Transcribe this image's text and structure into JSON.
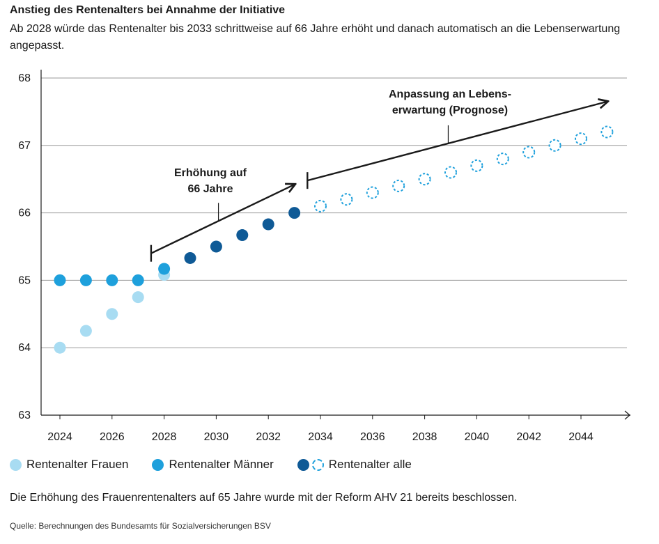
{
  "header": {
    "title": "Anstieg des Rentenalters bei Annahme der Initiative",
    "subtitle": "Ab 2028 würde das Rentenalter bis 2033 schrittweise auf 66 Jahre erhöht und danach automatisch an die Lebenserwartung angepasst."
  },
  "chart_data": {
    "type": "scatter",
    "title": "Anstieg des Rentenalters bei Annahme der Initiative",
    "xlabel": "",
    "ylabel": "",
    "xlim": [
      2023.3,
      2046.5
    ],
    "ylim": [
      63,
      68
    ],
    "yticks": [
      63,
      64,
      65,
      66,
      67,
      68
    ],
    "xticks": [
      2024,
      2026,
      2028,
      2030,
      2032,
      2034,
      2036,
      2038,
      2040,
      2042,
      2044
    ],
    "grid": true,
    "series": [
      {
        "name": "Rentenalter Frauen",
        "color": "#a8dcf2",
        "style": "filled",
        "x": [
          2024,
          2025,
          2026,
          2027,
          2028
        ],
        "y": [
          64.0,
          64.25,
          64.5,
          64.75,
          65.08
        ]
      },
      {
        "name": "Rentenalter Männer",
        "color": "#1ea0dc",
        "style": "filled",
        "x": [
          2024,
          2025,
          2026,
          2027,
          2028
        ],
        "y": [
          65.0,
          65.0,
          65.0,
          65.0,
          65.17
        ]
      },
      {
        "name": "Rentenalter alle",
        "color": "#0f5a96",
        "style": "filled",
        "x": [
          2029,
          2030,
          2031,
          2032,
          2033
        ],
        "y": [
          65.33,
          65.5,
          65.67,
          65.83,
          66.0
        ]
      },
      {
        "name": "Rentenalter alle (Prognose)",
        "color": "#1ea0dc",
        "style": "dashed-open",
        "x": [
          2034,
          2035,
          2036,
          2037,
          2038,
          2039,
          2040,
          2041,
          2042,
          2043,
          2044,
          2045
        ],
        "y": [
          66.1,
          66.2,
          66.3,
          66.4,
          66.5,
          66.6,
          66.7,
          66.8,
          66.9,
          67.0,
          67.1,
          67.2
        ]
      }
    ],
    "annotations": [
      {
        "lines": [
          "Erhöhung auf",
          "66 Jahre"
        ],
        "from": [
          2027.5,
          65.4
        ],
        "to": [
          2033.0,
          66.42
        ]
      },
      {
        "lines": [
          "Anpassung an Lebens-",
          "erwartung (Prognose)"
        ],
        "from": [
          2033.5,
          66.48
        ],
        "to": [
          2045.0,
          67.65
        ]
      }
    ]
  },
  "legend": {
    "women": "Rentenalter Frauen",
    "men": "Rentenalter Männer",
    "all": "Rentenalter alle"
  },
  "footer": {
    "note": "Die Erhöhung des Frauenrentenalters auf 65 Jahre wurde mit der Reform AHV 21 bereits beschlossen.",
    "source": "Quelle: Berechnungen des Bundesamts für Sozialversicherungen BSV"
  }
}
